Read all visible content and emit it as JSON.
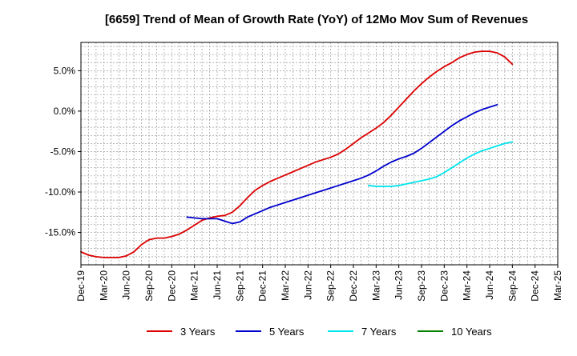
{
  "chart_data": {
    "type": "line",
    "title": "[6659]  Trend of Mean of Growth Rate (YoY) of 12Mo Mov Sum of Revenues",
    "xlabel": "",
    "ylabel": "",
    "ylim": [
      -19.0,
      8.5
    ],
    "y_ticks": [
      5.0,
      0.0,
      -5.0,
      -10.0,
      -15.0
    ],
    "y_tick_labels": [
      "5.0%",
      "0.0%",
      "-5.0%",
      "-10.0%",
      "-15.0%"
    ],
    "x_tick_labels": [
      "Dec-19",
      "Mar-20",
      "Jun-20",
      "Sep-20",
      "Dec-20",
      "Mar-21",
      "Jun-21",
      "Sep-21",
      "Dec-21",
      "Mar-22",
      "Jun-22",
      "Sep-22",
      "Dec-22",
      "Mar-23",
      "Jun-23",
      "Sep-23",
      "Dec-23",
      "Mar-24",
      "Jun-24",
      "Sep-24",
      "Dec-24",
      "Mar-25"
    ],
    "x_start": "Dec-19",
    "x_unit": "months since Dec-19",
    "xlim": [
      0,
      63
    ],
    "grid": true,
    "legend_position": "bottom",
    "series": [
      {
        "name": "3 Years",
        "color": "#dd0000",
        "x": [
          0,
          1,
          2,
          3,
          4,
          5,
          6,
          7,
          8,
          9,
          10,
          11,
          12,
          13,
          14,
          15,
          16,
          17,
          18,
          19,
          20,
          21,
          22,
          23,
          24,
          25,
          26,
          27,
          28,
          29,
          30,
          31,
          32,
          33,
          34,
          35,
          36,
          37,
          38,
          39,
          40,
          41,
          42,
          43,
          44,
          45,
          46,
          47,
          48,
          49,
          50,
          51,
          52,
          53,
          54,
          55,
          56,
          57,
          58,
          59,
          60
        ],
        "values": [
          -17.4,
          -17.8,
          -18.0,
          -18.1,
          -18.1,
          -18.1,
          -17.9,
          -17.4,
          -16.5,
          -15.9,
          -15.7,
          -15.7,
          -15.5,
          -15.2,
          -14.7,
          -14.1,
          -13.5,
          -13.2,
          -13.0,
          -12.9,
          -12.5,
          -11.7,
          -10.7,
          -9.8,
          -9.2,
          -8.7,
          -8.3,
          -7.9,
          -7.5,
          -7.1,
          -6.7,
          -6.3,
          -6.0,
          -5.7,
          -5.3,
          -4.7,
          -4.0,
          -3.3,
          -2.7,
          -2.1,
          -1.4,
          -0.5,
          0.5,
          1.5,
          2.5,
          3.4,
          4.2,
          4.9,
          5.5,
          6.0,
          6.6,
          7.0,
          7.3,
          7.4,
          7.4,
          7.2,
          6.7,
          5.8,
          null,
          null,
          null
        ]
      },
      {
        "name": "5 Years",
        "color": "#0000cc",
        "x": [
          14,
          15,
          16,
          17,
          18,
          19,
          20,
          21,
          22,
          23,
          24,
          25,
          26,
          27,
          28,
          29,
          30,
          31,
          32,
          33,
          34,
          35,
          36,
          37,
          38,
          39,
          40,
          41,
          42,
          43,
          44,
          45,
          46,
          47,
          48,
          49,
          50,
          51,
          52,
          53,
          54,
          55,
          56,
          57,
          58,
          59,
          60
        ],
        "values": [
          -13.1,
          -13.2,
          -13.3,
          -13.3,
          -13.3,
          -13.6,
          -13.9,
          -13.7,
          -13.1,
          -12.7,
          -12.3,
          -11.9,
          -11.6,
          -11.3,
          -11.0,
          -10.7,
          -10.4,
          -10.1,
          -9.8,
          -9.5,
          -9.2,
          -8.9,
          -8.6,
          -8.3,
          -7.9,
          -7.4,
          -6.8,
          -6.3,
          -5.9,
          -5.6,
          -5.2,
          -4.6,
          -3.9,
          -3.2,
          -2.5,
          -1.8,
          -1.2,
          -0.7,
          -0.2,
          0.2,
          0.5,
          0.8,
          null,
          null,
          null,
          null,
          null
        ]
      },
      {
        "name": "7 Years",
        "color": "#00e5ee",
        "x": [
          38,
          39,
          40,
          41,
          42,
          43,
          44,
          45,
          46,
          47,
          48,
          49,
          50,
          51,
          52,
          53,
          54,
          55,
          56,
          57,
          58,
          59,
          60
        ],
        "values": [
          -9.2,
          -9.3,
          -9.3,
          -9.3,
          -9.2,
          -9.0,
          -8.8,
          -8.6,
          -8.4,
          -8.1,
          -7.6,
          -7.0,
          -6.4,
          -5.8,
          -5.3,
          -4.9,
          -4.6,
          -4.3,
          -4.0,
          -3.8,
          null,
          null,
          null
        ]
      },
      {
        "name": "10 Years",
        "color": "#008000",
        "x": [],
        "values": []
      }
    ]
  }
}
